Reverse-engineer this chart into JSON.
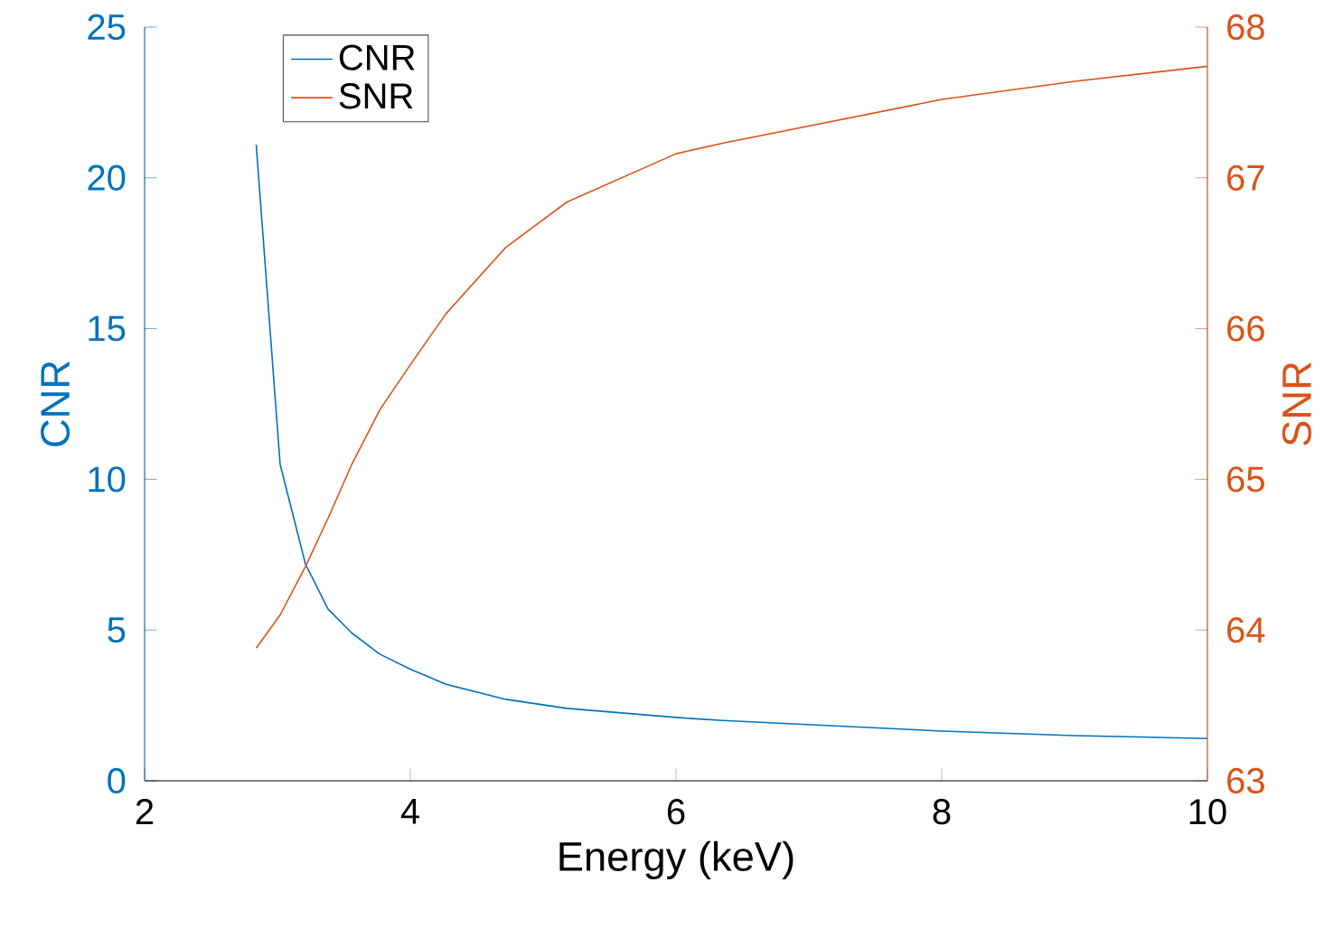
{
  "chart_data": {
    "type": "line",
    "xlabel": "Energy (keV)",
    "ylabel": "CNR",
    "y2label": "SNR",
    "xlim": [
      2,
      10
    ],
    "xticks": [
      2,
      4,
      6,
      8,
      10
    ],
    "ylim": [
      0,
      25
    ],
    "yticks": [
      0,
      5,
      10,
      15,
      20,
      25
    ],
    "y2lim": [
      63,
      68
    ],
    "y2ticks": [
      63,
      64,
      65,
      66,
      67,
      68
    ],
    "legend": "top left",
    "series": [
      {
        "name": "CNR",
        "color": "#0072bd",
        "x": [
          2.84,
          3.02,
          3.21,
          3.38,
          3.56,
          3.77,
          4.0,
          4.27,
          4.72,
          5.18,
          6.0,
          6.35,
          8.0,
          9.0,
          10.0
        ],
        "values": [
          21.1,
          10.5,
          7.2,
          5.7,
          4.9,
          4.2,
          3.7,
          3.2,
          2.7,
          2.4,
          2.1,
          2.0,
          1.65,
          1.5,
          1.4
        ]
      },
      {
        "name": "SNR",
        "color": "#d95319",
        "axis": "y2",
        "x": [
          2.84,
          3.02,
          3.21,
          3.38,
          3.56,
          3.77,
          4.0,
          4.27,
          4.72,
          5.18,
          6.0,
          6.35,
          8.0,
          9.0,
          10.0
        ],
        "values": [
          63.88,
          64.1,
          64.42,
          64.74,
          65.1,
          65.46,
          65.76,
          66.1,
          66.54,
          66.84,
          67.16,
          67.23,
          67.52,
          67.64,
          67.74
        ]
      }
    ]
  }
}
